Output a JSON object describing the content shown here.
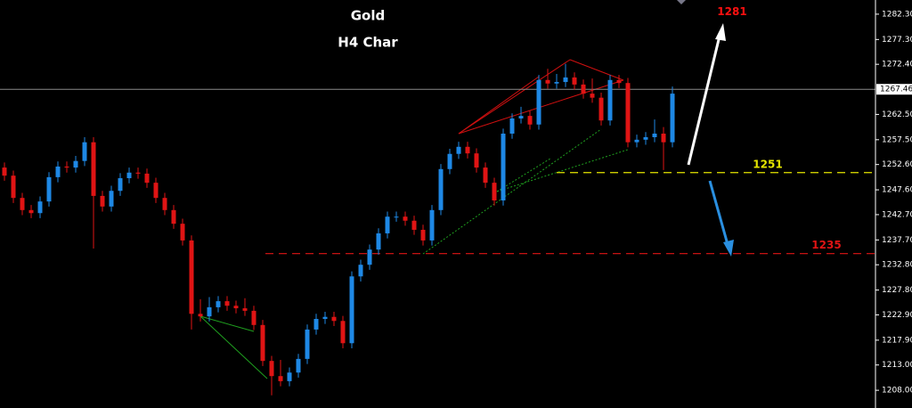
{
  "chart_data": {
    "type": "candlestick",
    "title": "Gold",
    "subtitle": "H4 Char",
    "ylim": [
      1204.5,
      1285.1
    ],
    "yticks": [
      {
        "value": 1282.3,
        "label": "1282.30"
      },
      {
        "value": 1277.3,
        "label": "1277.30"
      },
      {
        "value": 1272.4,
        "label": "1272.40"
      },
      {
        "value": 1262.5,
        "label": "1262.50"
      },
      {
        "value": 1257.5,
        "label": "1257.50"
      },
      {
        "value": 1252.6,
        "label": "1252.60"
      },
      {
        "value": 1247.6,
        "label": "1247.60"
      },
      {
        "value": 1242.7,
        "label": "1242.70"
      },
      {
        "value": 1237.7,
        "label": "1237.70"
      },
      {
        "value": 1232.8,
        "label": "1232.80"
      },
      {
        "value": 1227.8,
        "label": "1227.80"
      },
      {
        "value": 1222.9,
        "label": "1222.90"
      },
      {
        "value": 1217.9,
        "label": "1217.90"
      },
      {
        "value": 1213,
        "label": "1213.00"
      },
      {
        "value": 1208,
        "label": "1208.00"
      }
    ],
    "current_price": 1267.46,
    "up_color": "#1e88e5",
    "down_color": "#e01414",
    "target": {
      "value": 1281,
      "label": "1281",
      "color": "#ff1010"
    },
    "levels": [
      {
        "value": 1251,
        "label": "1251",
        "color": "#e6e600"
      },
      {
        "value": 1235,
        "label": "1235",
        "color": "#e01414"
      }
    ],
    "open": [
      1252.0,
      1250.4,
      1246.0,
      1243.6,
      1243.0,
      1245.3,
      1250.1,
      1252.2,
      1252.0,
      1253.3,
      1257.0,
      1246.4,
      1244.3,
      1247.4,
      1249.9,
      1251.0,
      1250.8,
      1249.0,
      1246.0,
      1243.6,
      1240.9,
      1237.6,
      1223.1,
      1222.6,
      1224.4,
      1225.6,
      1224.7,
      1224.2,
      1223.7,
      1220.9,
      1213.8,
      1210.8,
      1209.8,
      1211.5,
      1214.2,
      1220.0,
      1222.1,
      1222.5,
      1221.7,
      1217.3,
      1230.5,
      1232.8,
      1235.8,
      1239.0,
      1242.3,
      1242.3,
      1241.5,
      1239.7,
      1237.6,
      1243.6,
      1251.7,
      1254.7,
      1256.1,
      1254.8,
      1252.0,
      1249.0,
      1245.5,
      1258.7,
      1261.7,
      1262.2,
      1260.5,
      1269.3,
      1268.6,
      1268.9,
      1269.8,
      1268.4,
      1266.6,
      1265.8,
      1261.3,
      1269.3,
      1268.7,
      1257.0,
      1257.5,
      1258.0,
      1258.7,
      1257.0
    ],
    "high": [
      1253.0,
      1251.4,
      1247.0,
      1244.6,
      1246.3,
      1251.1,
      1253.2,
      1253.2,
      1254.3,
      1258.0,
      1258.0,
      1247.4,
      1248.4,
      1250.9,
      1252.0,
      1252.0,
      1251.8,
      1250.0,
      1247.0,
      1244.6,
      1241.9,
      1238.6,
      1226.0,
      1226.4,
      1226.6,
      1226.6,
      1225.7,
      1226.2,
      1224.7,
      1221.9,
      1214.8,
      1214.0,
      1212.5,
      1215.2,
      1221.0,
      1223.1,
      1223.5,
      1223.5,
      1222.7,
      1231.5,
      1233.8,
      1236.8,
      1240.0,
      1243.3,
      1243.3,
      1243.3,
      1242.5,
      1240.7,
      1244.6,
      1252.7,
      1255.7,
      1257.1,
      1257.1,
      1255.8,
      1253.0,
      1250.0,
      1259.7,
      1262.7,
      1264.0,
      1263.2,
      1270.3,
      1271.5,
      1270.5,
      1272.5,
      1270.8,
      1269.4,
      1269.6,
      1266.8,
      1270.3,
      1270.3,
      1269.7,
      1258.5,
      1259.0,
      1261.5,
      1260.0,
      1268.0
    ],
    "low": [
      1249.4,
      1245.0,
      1242.6,
      1242.0,
      1242.0,
      1244.3,
      1249.1,
      1251.0,
      1251.0,
      1252.3,
      1236.0,
      1243.3,
      1243.3,
      1246.4,
      1248.9,
      1249.8,
      1248.0,
      1245.0,
      1242.6,
      1239.9,
      1236.6,
      1220.0,
      1221.6,
      1221.6,
      1223.4,
      1223.7,
      1223.2,
      1222.7,
      1219.9,
      1212.8,
      1207.0,
      1208.8,
      1208.8,
      1210.5,
      1213.2,
      1219.0,
      1221.1,
      1220.7,
      1216.3,
      1216.3,
      1229.5,
      1231.8,
      1234.8,
      1238.0,
      1241.3,
      1240.5,
      1238.7,
      1236.6,
      1236.6,
      1242.6,
      1250.7,
      1253.7,
      1253.8,
      1251.0,
      1248.0,
      1244.5,
      1244.5,
      1257.7,
      1260.7,
      1259.5,
      1259.5,
      1267.6,
      1267.6,
      1267.9,
      1267.4,
      1265.6,
      1264.8,
      1260.3,
      1260.3,
      1267.7,
      1256.0,
      1256.0,
      1256.5,
      1257.0,
      1251.5,
      1256.0
    ],
    "close": [
      1250.4,
      1246.0,
      1243.6,
      1243.0,
      1245.3,
      1250.1,
      1252.2,
      1252.0,
      1253.3,
      1257.0,
      1246.4,
      1244.3,
      1247.4,
      1249.9,
      1251.0,
      1250.8,
      1249.0,
      1246.0,
      1243.6,
      1240.9,
      1237.6,
      1223.1,
      1222.6,
      1224.4,
      1225.6,
      1224.7,
      1224.2,
      1223.7,
      1220.9,
      1213.8,
      1210.8,
      1209.8,
      1211.5,
      1214.2,
      1220.0,
      1222.1,
      1222.5,
      1221.7,
      1217.3,
      1230.5,
      1232.8,
      1235.8,
      1239.0,
      1242.3,
      1242.3,
      1241.5,
      1239.7,
      1237.6,
      1243.6,
      1251.7,
      1254.7,
      1256.1,
      1254.8,
      1252.0,
      1249.0,
      1245.5,
      1258.7,
      1261.7,
      1262.2,
      1260.5,
      1269.3,
      1268.6,
      1268.9,
      1269.8,
      1268.4,
      1266.6,
      1265.8,
      1261.3,
      1269.3,
      1268.7,
      1257.0,
      1257.5,
      1258.0,
      1258.7,
      1257.0,
      1266.6
    ]
  }
}
